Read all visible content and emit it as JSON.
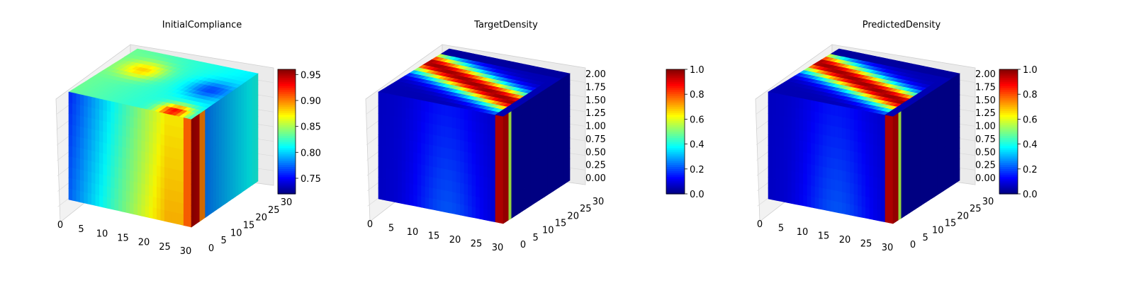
{
  "figure": {
    "background": "#ffffff"
  },
  "chart_data": [
    {
      "type": "heatmap",
      "subtype": "3d-voxel",
      "title": "InitialCompliance",
      "colormap": "jet",
      "x_ticks": [
        "0",
        "5",
        "10",
        "15",
        "20",
        "25",
        "30"
      ],
      "y_ticks": [
        "0",
        "5",
        "10",
        "15",
        "20",
        "25",
        "30"
      ],
      "z_ticks": [],
      "colorbar": {
        "min": 0.72,
        "max": 0.96,
        "ticks": [
          "0.75",
          "0.80",
          "0.85",
          "0.90",
          "0.95"
        ],
        "tick_values": [
          0.75,
          0.8,
          0.85,
          0.9,
          0.95
        ]
      },
      "pattern": "compliance"
    },
    {
      "type": "heatmap",
      "subtype": "3d-voxel",
      "title": "TargetDensity",
      "colormap": "jet",
      "x_ticks": [
        "0",
        "5",
        "10",
        "15",
        "20",
        "25",
        "30"
      ],
      "y_ticks": [
        "0",
        "5",
        "10",
        "15",
        "20",
        "25",
        "30"
      ],
      "z_ticks": [
        "0.00",
        "0.25",
        "0.50",
        "0.75",
        "1.00",
        "1.25",
        "1.50",
        "1.75",
        "2.00"
      ],
      "colorbar": {
        "min": 0.0,
        "max": 1.0,
        "ticks": [
          "0.0",
          "0.2",
          "0.4",
          "0.6",
          "0.8",
          "1.0"
        ],
        "tick_values": [
          0.0,
          0.2,
          0.4,
          0.6,
          0.8,
          1.0
        ]
      },
      "pattern": "density"
    },
    {
      "type": "heatmap",
      "subtype": "3d-voxel",
      "title": "PredictedDensity",
      "colormap": "jet",
      "x_ticks": [
        "0",
        "5",
        "10",
        "15",
        "20",
        "25",
        "30"
      ],
      "y_ticks": [
        "0",
        "5",
        "10",
        "15",
        "20",
        "25",
        "30"
      ],
      "z_ticks": [
        "0.00",
        "0.25",
        "0.50",
        "0.75",
        "1.00",
        "1.25",
        "1.50",
        "1.75",
        "2.00"
      ],
      "colorbar": {
        "min": 0.0,
        "max": 1.0,
        "ticks": [
          "0.0",
          "0.2",
          "0.4",
          "0.6",
          "0.8",
          "1.0"
        ],
        "tick_values": [
          0.0,
          0.2,
          0.4,
          0.6,
          0.8,
          1.0
        ]
      },
      "pattern": "density"
    }
  ]
}
